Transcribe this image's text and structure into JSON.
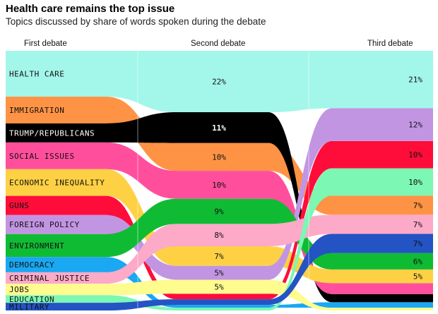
{
  "title": "Health care remains the top issue",
  "subtitle": "Topics discussed by share of words spoken during the debate",
  "chart_data": {
    "type": "area",
    "columns": [
      "First debate",
      "Second debate",
      "Third debate"
    ],
    "series": [
      {
        "name": "HEALTH CARE",
        "color": "#a3f6ea",
        "label_color": "#111111",
        "values": [
          12,
          22,
          21
        ],
        "value_labels": [
          "",
          "22%",
          "21%"
        ]
      },
      {
        "name": "IMMIGRATION",
        "color": "#ff9345",
        "label_color": "#111111",
        "values": [
          7,
          10,
          7
        ],
        "value_labels": [
          "",
          "10%",
          "7%"
        ]
      },
      {
        "name": "TRUMP/REPUBLICANS",
        "color": "#000000",
        "label_color": "#ffffff",
        "values": [
          5,
          11,
          3
        ],
        "value_labels": [
          "",
          "11%",
          ""
        ]
      },
      {
        "name": "SOCIAL ISSUES",
        "color": "#ff4f9c",
        "label_color": "#111111",
        "values": [
          7,
          10,
          4
        ],
        "value_labels": [
          "",
          "10%",
          ""
        ]
      },
      {
        "name": "ECONOMIC INEQUALITY",
        "color": "#fed145",
        "label_color": "#111111",
        "values": [
          7,
          7,
          5
        ],
        "value_labels": [
          "",
          "7%",
          "5%"
        ]
      },
      {
        "name": "GUNS",
        "color": "#ff0d3a",
        "label_color": "#111111",
        "values": [
          5,
          2,
          10
        ],
        "value_labels": [
          "",
          "",
          "10%"
        ]
      },
      {
        "name": "FOREIGN POLICY",
        "color": "#c295e3",
        "label_color": "#111111",
        "values": [
          5,
          5,
          12
        ],
        "value_labels": [
          "",
          "5%",
          "12%"
        ]
      },
      {
        "name": "ENVIRONMENT",
        "color": "#10bb34",
        "label_color": "#111111",
        "values": [
          6,
          9,
          6
        ],
        "value_labels": [
          "",
          "9%",
          "6%"
        ]
      },
      {
        "name": "DEMOCRACY",
        "color": "#1aa8f2",
        "label_color": "#111111",
        "values": [
          4,
          1,
          2
        ],
        "value_labels": [
          "",
          "",
          ""
        ]
      },
      {
        "name": "CRIMINAL JUSTICE",
        "color": "#fcaac8",
        "label_color": "#111111",
        "values": [
          3,
          8,
          7
        ],
        "value_labels": [
          "",
          "8%",
          "7%"
        ]
      },
      {
        "name": "JOBS",
        "color": "#fefb8f",
        "label_color": "#111111",
        "values": [
          3,
          5,
          1
        ],
        "value_labels": [
          "",
          "5%",
          ""
        ]
      },
      {
        "name": "EDUCATION",
        "color": "#7cf7b4",
        "label_color": "#111111",
        "values": [
          2,
          1,
          10
        ],
        "value_labels": [
          "",
          "",
          "10%"
        ]
      },
      {
        "name": "MILITARY",
        "color": "#2453c4",
        "label_color": "#111111",
        "values": [
          2,
          2,
          7
        ],
        "value_labels": [
          "",
          "",
          "7%"
        ]
      }
    ]
  }
}
